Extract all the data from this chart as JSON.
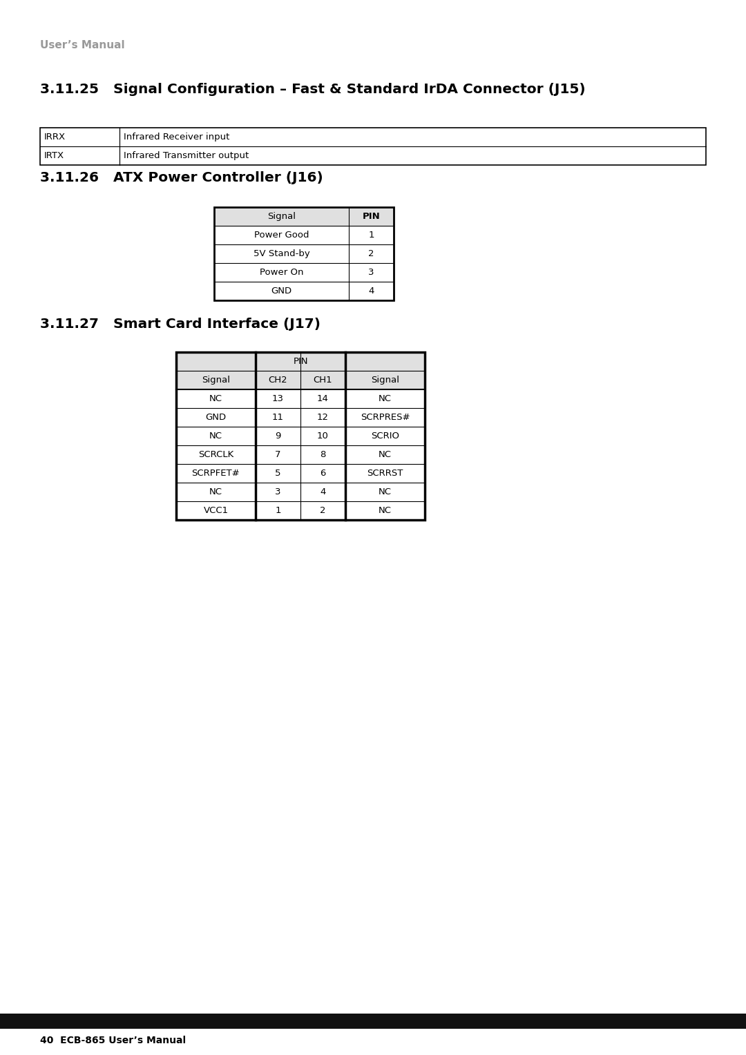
{
  "page_width": 10.8,
  "page_height": 15.28,
  "bg_color": "#ffffff",
  "header_text": "User’s Manual",
  "header_color": "#999999",
  "footer_bar_color": "#111111",
  "footer_text": "40  ECB-865 User’s Manual",
  "section_325_title": "3.11.25   Signal Configuration – Fast & Standard IrDA Connector (J15)",
  "section_326_title": "3.11.26   ATX Power Controller (J16)",
  "section_327_title": "3.11.27   Smart Card Interface (J17)",
  "irda_rows": [
    [
      "IRRX",
      "Infrared Receiver input"
    ],
    [
      "IRTX",
      "Infrared Transmitter output"
    ]
  ],
  "atx_header": [
    "Signal",
    "PIN"
  ],
  "atx_rows": [
    [
      "Power Good",
      "1"
    ],
    [
      "5V Stand-by",
      "2"
    ],
    [
      "Power On",
      "3"
    ],
    [
      "GND",
      "4"
    ]
  ],
  "sc_col_headers": [
    "Signal",
    "CH2",
    "CH1",
    "Signal"
  ],
  "sc_rows": [
    [
      "NC",
      "13",
      "14",
      "NC"
    ],
    [
      "GND",
      "11",
      "12",
      "SCRPRES#"
    ],
    [
      "NC",
      "9",
      "10",
      "SCRIO"
    ],
    [
      "SCRCLK",
      "7",
      "8",
      "NC"
    ],
    [
      "SCRPFET#",
      "5",
      "6",
      "SCRRST"
    ],
    [
      "NC",
      "3",
      "4",
      "NC"
    ],
    [
      "VCC1",
      "1",
      "2",
      "NC"
    ]
  ],
  "light_gray": "#e0e0e0",
  "white": "#ffffff",
  "black": "#000000"
}
